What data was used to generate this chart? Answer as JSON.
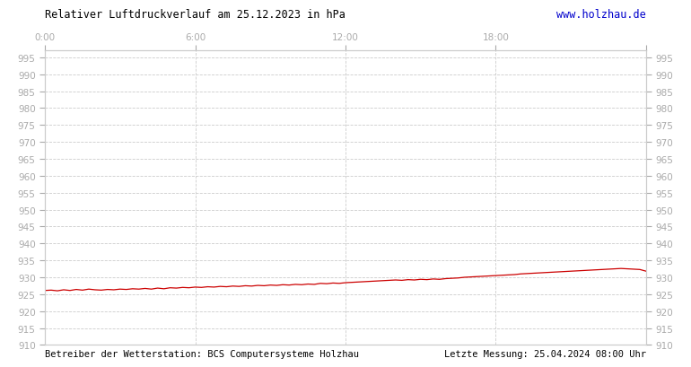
{
  "title": "Relativer Luftdruckverlauf am 25.12.2023 in hPa",
  "title_right": "www.holzhau.de",
  "footer_left": "Betreiber der Wetterstation: BCS Computersysteme Holzhau",
  "footer_right": "Letzte Messung: 25.04.2024 08:00 Uhr",
  "x_ticks": [
    0,
    6,
    12,
    18,
    24
  ],
  "x_tick_labels": [
    "0:00",
    "6:00",
    "12:00",
    "18:00",
    ""
  ],
  "ylim": [
    910,
    997
  ],
  "ytick_min": 910,
  "ytick_max": 995,
  "ytick_step": 5,
  "line_color": "#cc0000",
  "grid_color": "#cccccc",
  "bg_color": "#ffffff",
  "outer_bg": "#ffffff",
  "tick_color": "#aaaaaa",
  "pressure_x": [
    0.0,
    0.25,
    0.5,
    0.75,
    1.0,
    1.25,
    1.5,
    1.75,
    2.0,
    2.25,
    2.5,
    2.75,
    3.0,
    3.25,
    3.5,
    3.75,
    4.0,
    4.25,
    4.5,
    4.75,
    5.0,
    5.25,
    5.5,
    5.75,
    6.0,
    6.25,
    6.5,
    6.75,
    7.0,
    7.25,
    7.5,
    7.75,
    8.0,
    8.25,
    8.5,
    8.75,
    9.0,
    9.25,
    9.5,
    9.75,
    10.0,
    10.25,
    10.5,
    10.75,
    11.0,
    11.25,
    11.5,
    11.75,
    12.0,
    12.25,
    12.5,
    12.75,
    13.0,
    13.25,
    13.5,
    13.75,
    14.0,
    14.25,
    14.5,
    14.75,
    15.0,
    15.25,
    15.5,
    15.75,
    16.0,
    16.25,
    16.5,
    16.75,
    17.0,
    17.25,
    17.5,
    17.75,
    18.0,
    18.25,
    18.5,
    18.75,
    19.0,
    19.25,
    19.5,
    19.75,
    20.0,
    20.25,
    20.5,
    20.75,
    21.0,
    21.25,
    21.5,
    21.75,
    22.0,
    22.25,
    22.5,
    22.75,
    23.0,
    23.25,
    23.5,
    23.75,
    24.0
  ],
  "pressure_y": [
    926.1,
    926.2,
    926.0,
    926.3,
    926.1,
    926.4,
    926.2,
    926.5,
    926.3,
    926.2,
    926.4,
    926.3,
    926.5,
    926.4,
    926.6,
    926.5,
    926.7,
    926.5,
    926.8,
    926.6,
    926.9,
    926.8,
    927.0,
    926.9,
    927.1,
    927.0,
    927.2,
    927.1,
    927.3,
    927.2,
    927.4,
    927.3,
    927.5,
    927.4,
    927.6,
    927.5,
    927.7,
    927.6,
    927.8,
    927.7,
    927.9,
    927.8,
    928.0,
    927.9,
    928.2,
    928.1,
    928.3,
    928.2,
    928.4,
    928.5,
    928.6,
    928.7,
    928.8,
    928.9,
    929.0,
    929.1,
    929.2,
    929.1,
    929.3,
    929.2,
    929.4,
    929.3,
    929.5,
    929.4,
    929.6,
    929.7,
    929.8,
    930.0,
    930.1,
    930.2,
    930.3,
    930.4,
    930.5,
    930.6,
    930.7,
    930.8,
    931.0,
    931.1,
    931.2,
    931.3,
    931.4,
    931.5,
    931.6,
    931.7,
    931.8,
    931.9,
    932.0,
    932.1,
    932.2,
    932.3,
    932.4,
    932.5,
    932.6,
    932.5,
    932.4,
    932.3,
    931.8
  ]
}
